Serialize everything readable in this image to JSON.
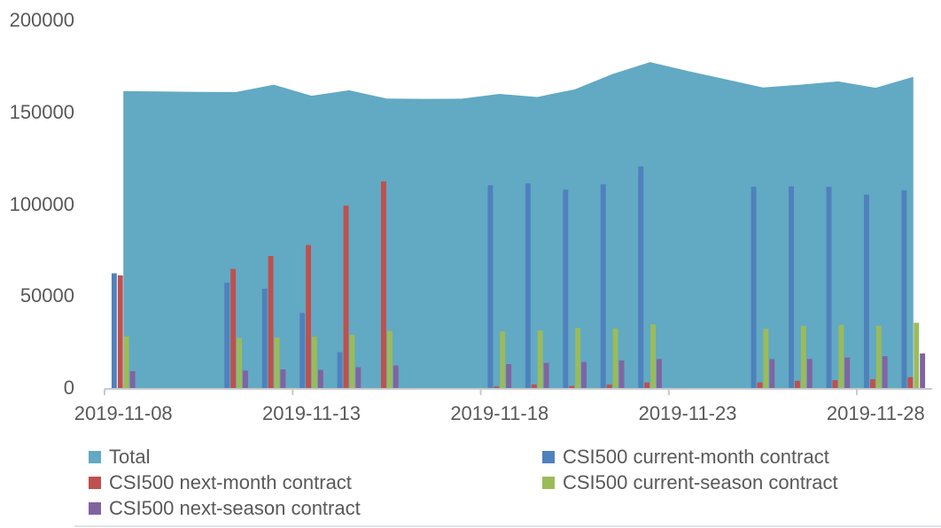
{
  "chart_data": {
    "type": "combo-area-bar",
    "title": "",
    "xlabel": "",
    "ylabel": "",
    "ylim": [
      0,
      200000
    ],
    "grid": false,
    "legend_position": "bottom",
    "y_ticks": [
      {
        "value": 0,
        "label": "0"
      },
      {
        "value": 50000,
        "label": "50000"
      },
      {
        "value": 100000,
        "label": "100000"
      },
      {
        "value": 150000,
        "label": "150000"
      },
      {
        "value": 200000,
        "label": "200000"
      }
    ],
    "x_ticks": [
      {
        "index": 0,
        "label": "2019-11-08"
      },
      {
        "index": 5,
        "label": "2019-11-13"
      },
      {
        "index": 10,
        "label": "2019-11-18"
      },
      {
        "index": 15,
        "label": "2019-11-23"
      },
      {
        "index": 20,
        "label": "2019-11-28"
      }
    ],
    "dates": [
      "2019-11-08",
      "2019-11-09",
      "2019-11-10",
      "2019-11-11",
      "2019-11-12",
      "2019-11-13",
      "2019-11-14",
      "2019-11-15",
      "2019-11-16",
      "2019-11-17",
      "2019-11-18",
      "2019-11-19",
      "2019-11-20",
      "2019-11-21",
      "2019-11-22",
      "2019-11-23",
      "2019-11-24",
      "2019-11-25",
      "2019-11-26",
      "2019-11-27",
      "2019-11-28",
      "2019-11-29"
    ],
    "series": [
      {
        "name": "Total",
        "type": "area",
        "color": "#62A9C4",
        "values": [
          161500,
          161300,
          161100,
          161000,
          165000,
          159000,
          162000,
          157500,
          157300,
          157400,
          160000,
          158300,
          162500,
          170800,
          177300,
          172500,
          168000,
          163500,
          165000,
          166800,
          163300,
          169300
        ]
      },
      {
        "name": "CSI500 current-month contract",
        "type": "bar",
        "color": "#4F81BD",
        "values": [
          62400,
          null,
          null,
          57300,
          54000,
          40800,
          19500,
          0,
          null,
          null,
          110300,
          111300,
          107900,
          110800,
          120500,
          null,
          null,
          109500,
          109700,
          109500,
          105200,
          107600
        ]
      },
      {
        "name": "CSI500 next-month contract",
        "type": "bar",
        "color": "#C0504D",
        "values": [
          61300,
          null,
          null,
          64800,
          71800,
          77800,
          99200,
          112400,
          null,
          null,
          800,
          1900,
          1100,
          1900,
          3000,
          null,
          null,
          3100,
          3900,
          4300,
          4800,
          5900
        ]
      },
      {
        "name": "CSI500 current-season contract",
        "type": "bar",
        "color": "#9BBB59",
        "values": [
          28000,
          null,
          null,
          27200,
          27400,
          27900,
          29000,
          31100,
          null,
          null,
          30800,
          31400,
          32700,
          32400,
          34600,
          null,
          null,
          32200,
          33800,
          34300,
          33800,
          35500
        ]
      },
      {
        "name": "CSI500 next-season contract",
        "type": "bar",
        "color": "#8064A2",
        "values": [
          9200,
          null,
          null,
          9500,
          10100,
          9900,
          11300,
          12300,
          null,
          null,
          13000,
          13700,
          14200,
          15000,
          15800,
          null,
          null,
          15700,
          15800,
          16600,
          17300,
          18800
        ]
      }
    ]
  },
  "legend": {
    "items": [
      {
        "label": "Total",
        "color": "#62A9C4"
      },
      {
        "label": "CSI500 current-month contract",
        "color": "#4F81BD"
      },
      {
        "label": "CSI500 next-month contract",
        "color": "#C0504D"
      },
      {
        "label": "CSI500 current-season contract",
        "color": "#9BBB59"
      },
      {
        "label": "CSI500 next-season contract",
        "color": "#8064A2"
      }
    ]
  },
  "axis_style": {
    "line_color": "#c6cacd",
    "text_color": "#595959"
  }
}
